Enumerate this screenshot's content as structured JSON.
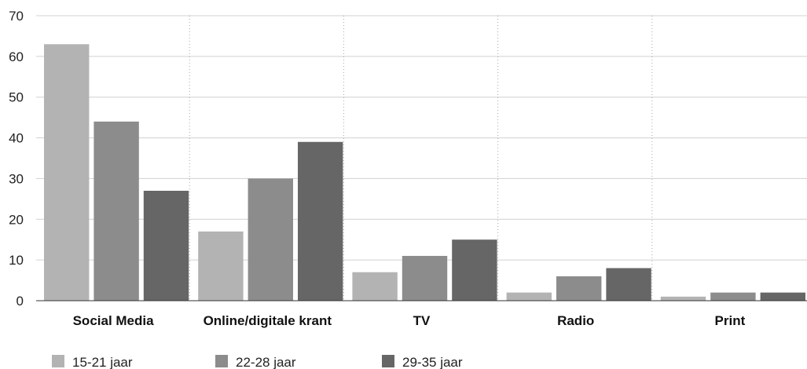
{
  "chart_data": {
    "type": "bar",
    "categories": [
      "Social Media",
      "Online/digitale krant",
      "TV",
      "Radio",
      "Print"
    ],
    "series": [
      {
        "name": "15-21 jaar",
        "color": "#b3b3b3",
        "values": [
          63,
          17,
          7,
          2,
          1
        ]
      },
      {
        "name": "22-28 jaar",
        "color": "#8c8c8c",
        "values": [
          44,
          30,
          11,
          6,
          2
        ]
      },
      {
        "name": "29-35 jaar",
        "color": "#666666",
        "values": [
          27,
          39,
          15,
          8,
          2
        ]
      }
    ],
    "yticks": [
      "0",
      "10",
      "20",
      "30",
      "40",
      "50",
      "60",
      "70"
    ],
    "ylim": [
      0,
      70
    ],
    "grid": true,
    "legend_position": "bottom-left"
  }
}
